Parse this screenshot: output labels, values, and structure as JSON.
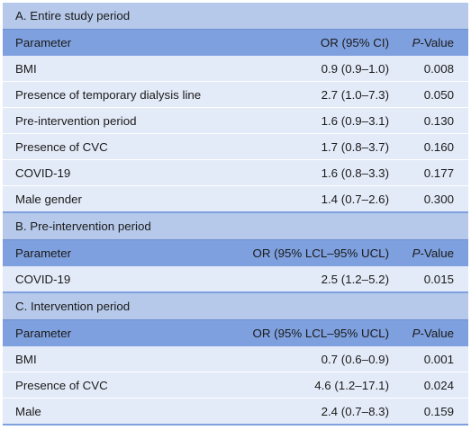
{
  "sections": [
    {
      "title": "A. Entire study period",
      "header": {
        "parameter": "Parameter",
        "or": "OR (95% CI)",
        "p_prefix": "P",
        "p_suffix": "-Value"
      },
      "rows": [
        {
          "parameter": "BMI",
          "or": "0.9 (0.9–1.0)",
          "p": "0.008"
        },
        {
          "parameter": "Presence of temporary dialysis line",
          "or": "2.7 (1.0–7.3)",
          "p": "0.050"
        },
        {
          "parameter": "Pre-intervention period",
          "or": "1.6 (0.9–3.1)",
          "p": "0.130"
        },
        {
          "parameter": "Presence of CVC",
          "or": "1.7 (0.8–3.7)",
          "p": "0.160"
        },
        {
          "parameter": "COVID-19",
          "or": "1.6 (0.8–3.3)",
          "p": "0.177"
        },
        {
          "parameter": "Male gender",
          "or": "1.4 (0.7–2.6)",
          "p": "0.300"
        }
      ]
    },
    {
      "title": "B. Pre-intervention period",
      "header": {
        "parameter": "Parameter",
        "or": "OR (95% LCL–95% UCL)",
        "p_prefix": "P",
        "p_suffix": "-Value"
      },
      "rows": [
        {
          "parameter": "COVID-19",
          "or": "2.5 (1.2–5.2)",
          "p": "0.015"
        }
      ]
    },
    {
      "title": "C. Intervention period",
      "header": {
        "parameter": "Parameter",
        "or": "OR (95% LCL–95% UCL)",
        "p_prefix": "P",
        "p_suffix": "-Value"
      },
      "rows": [
        {
          "parameter": "BMI",
          "or": "0.7 (0.6–0.9)",
          "p": "0.001"
        },
        {
          "parameter": "Presence of CVC",
          "or": "4.6 (1.2–17.1)",
          "p": "0.024"
        },
        {
          "parameter": "Male",
          "or": "2.4 (0.7–8.3)",
          "p": "0.159"
        }
      ]
    }
  ]
}
